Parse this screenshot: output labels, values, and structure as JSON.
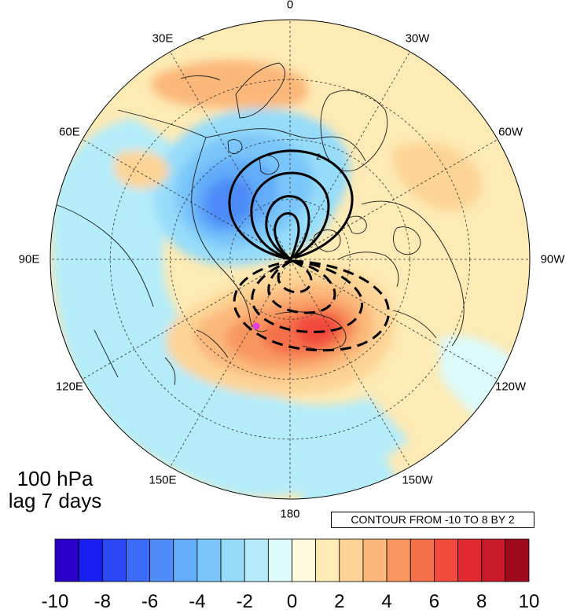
{
  "map": {
    "projection": "north polar stereographic",
    "level_label": "100 hPa",
    "lag_label": "lag 7 days",
    "contour_info": "CONTOUR FROM -10 TO 8 BY 2",
    "longitude_labels": [
      {
        "text": "0",
        "lon": 0
      },
      {
        "text": "30W",
        "lon": -30
      },
      {
        "text": "60W",
        "lon": -60
      },
      {
        "text": "90W",
        "lon": -90
      },
      {
        "text": "120W",
        "lon": -120
      },
      {
        "text": "150W",
        "lon": -150
      },
      {
        "text": "180",
        "lon": 180
      },
      {
        "text": "150E",
        "lon": 150
      },
      {
        "text": "120E",
        "lon": 120
      },
      {
        "text": "90E",
        "lon": 90
      },
      {
        "text": "60E",
        "lon": 60
      },
      {
        "text": "30E",
        "lon": 30
      }
    ],
    "contour_line_values": [
      -10,
      -8,
      -6,
      -4,
      -2,
      2,
      4,
      6,
      8
    ],
    "marker_color": "#e040e0"
  },
  "colorbar": {
    "colors": [
      "#2c00c8",
      "#1a1ef0",
      "#2c48f5",
      "#3a6cf8",
      "#4e8cf8",
      "#62acfa",
      "#7ac6fa",
      "#96dcfa",
      "#b4ecfa",
      "#dcfafa",
      "#fffade",
      "#fdeab4",
      "#fdd496",
      "#fbb87a",
      "#f89660",
      "#f5704a",
      "#f24a3c",
      "#e02a30",
      "#c81a28",
      "#a00a1c"
    ],
    "tick_labels": [
      "-10",
      "-8",
      "-6",
      "-4",
      "-2",
      "0",
      "2",
      "4",
      "6",
      "8",
      "10"
    ]
  }
}
